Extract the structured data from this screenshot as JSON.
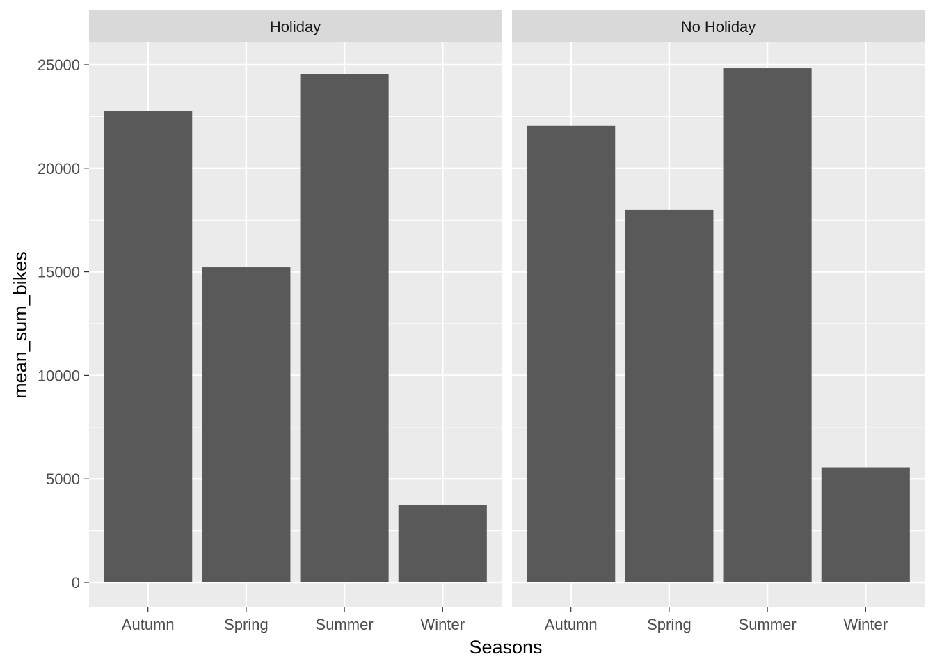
{
  "chart_data": {
    "type": "bar",
    "xlabel": "Seasons",
    "ylabel": "mean_sum_bikes",
    "categories": [
      "Autumn",
      "Spring",
      "Summer",
      "Winter"
    ],
    "ylim": [
      0,
      26000
    ],
    "yticks": [
      0,
      5000,
      10000,
      15000,
      20000,
      25000
    ],
    "yticklabels": [
      "0",
      "5000",
      "10000",
      "15000",
      "20000",
      "25000"
    ],
    "grid": true,
    "bar_color": "#595959",
    "panel_background": "#ebebeb",
    "strip_background": "#d9d9d9",
    "facets": [
      {
        "label": "Holiday",
        "values": [
          22750,
          15220,
          24530,
          3730
        ]
      },
      {
        "label": "No Holiday",
        "values": [
          22050,
          17980,
          24830,
          5560
        ]
      }
    ]
  }
}
